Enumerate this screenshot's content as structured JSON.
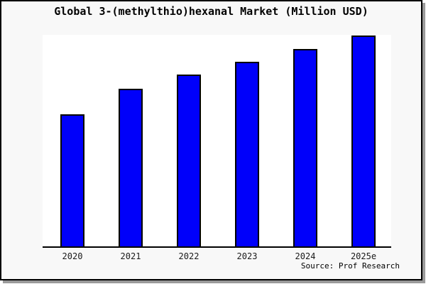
{
  "frame": {
    "background": "#f8f8f8",
    "border_color": "#000000",
    "shadow_color": "#9a9a9a",
    "plot_background": "#ffffff",
    "axis_color": "#000000"
  },
  "source_note": "Source: Prof Research",
  "chart_data": {
    "type": "bar",
    "title": "Global 3-(methylthio)hexanal Market (Million USD)",
    "categories": [
      "2020",
      "2021",
      "2022",
      "2023",
      "2024",
      "2025e"
    ],
    "values": [
      62.5,
      74.9,
      81.6,
      87.6,
      93.6,
      100
    ],
    "xlabel": "",
    "ylabel": "",
    "ylim": [
      0,
      100
    ],
    "grid": false,
    "legend": false,
    "y_axis_visible": false,
    "bar_color": "#0000fa",
    "bar_border_color": "#000000",
    "value_note": "No y-axis scale shown in image; values are relative bar heights indexed to 2025e = 100."
  }
}
